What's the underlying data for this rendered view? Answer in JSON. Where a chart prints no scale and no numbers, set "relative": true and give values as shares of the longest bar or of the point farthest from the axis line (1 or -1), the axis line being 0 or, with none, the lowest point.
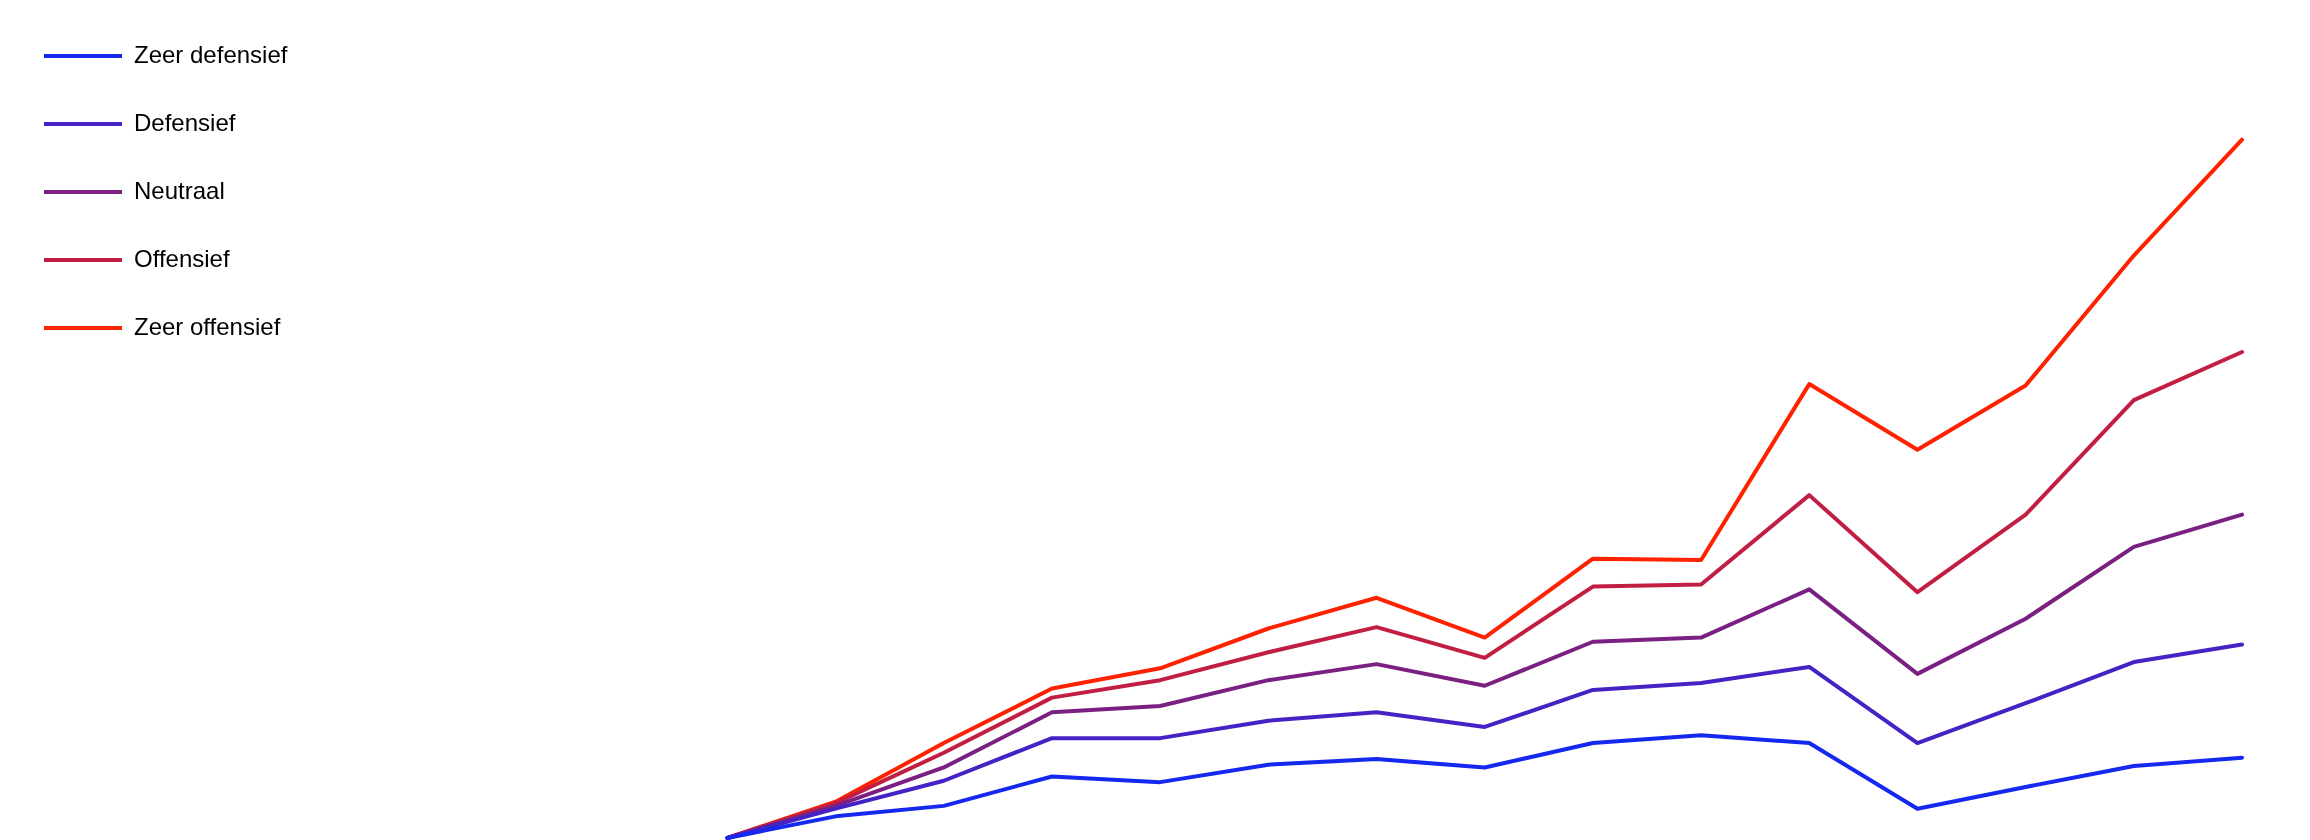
{
  "chart_data": {
    "type": "line",
    "relative": true,
    "legend": "top left",
    "marker": "none",
    "line_style": "solid",
    "grid": false,
    "categories": [
      null,
      null,
      null,
      null,
      null,
      null,
      null,
      null,
      null,
      null,
      null,
      null,
      null,
      null,
      null
    ],
    "series": [
      {
        "name": "Zeer defensief",
        "color": "#1428f0",
        "values": [
          0,
          0.031,
          0.046,
          0.088,
          0.08,
          0.105,
          0.113,
          0.101,
          0.136,
          0.147,
          0.136,
          0.042,
          0.073,
          0.103,
          0.115
        ]
      },
      {
        "name": "Defensief",
        "color": "#4422c4",
        "values": [
          0,
          0.042,
          0.082,
          0.143,
          0.143,
          0.168,
          0.18,
          0.159,
          0.212,
          0.222,
          0.245,
          0.136,
          0.193,
          0.252,
          0.277
        ]
      },
      {
        "name": "Neutraal",
        "color": "#7a2082",
        "values": [
          0,
          0.046,
          0.101,
          0.18,
          0.189,
          0.226,
          0.249,
          0.218,
          0.281,
          0.287,
          0.356,
          0.235,
          0.314,
          0.417,
          0.463
        ]
      },
      {
        "name": "Offensief",
        "color": "#c21e44",
        "values": [
          0,
          0.05,
          0.122,
          0.201,
          0.226,
          0.266,
          0.302,
          0.258,
          0.36,
          0.363,
          0.491,
          0.352,
          0.463,
          0.627,
          0.696
        ]
      },
      {
        "name": "Zeer offensief",
        "color": "#ff2200",
        "values": [
          0,
          0.052,
          0.136,
          0.214,
          0.243,
          0.3,
          0.344,
          0.287,
          0.4,
          0.398,
          0.65,
          0.556,
          0.648,
          0.834,
          1
        ]
      }
    ]
  }
}
